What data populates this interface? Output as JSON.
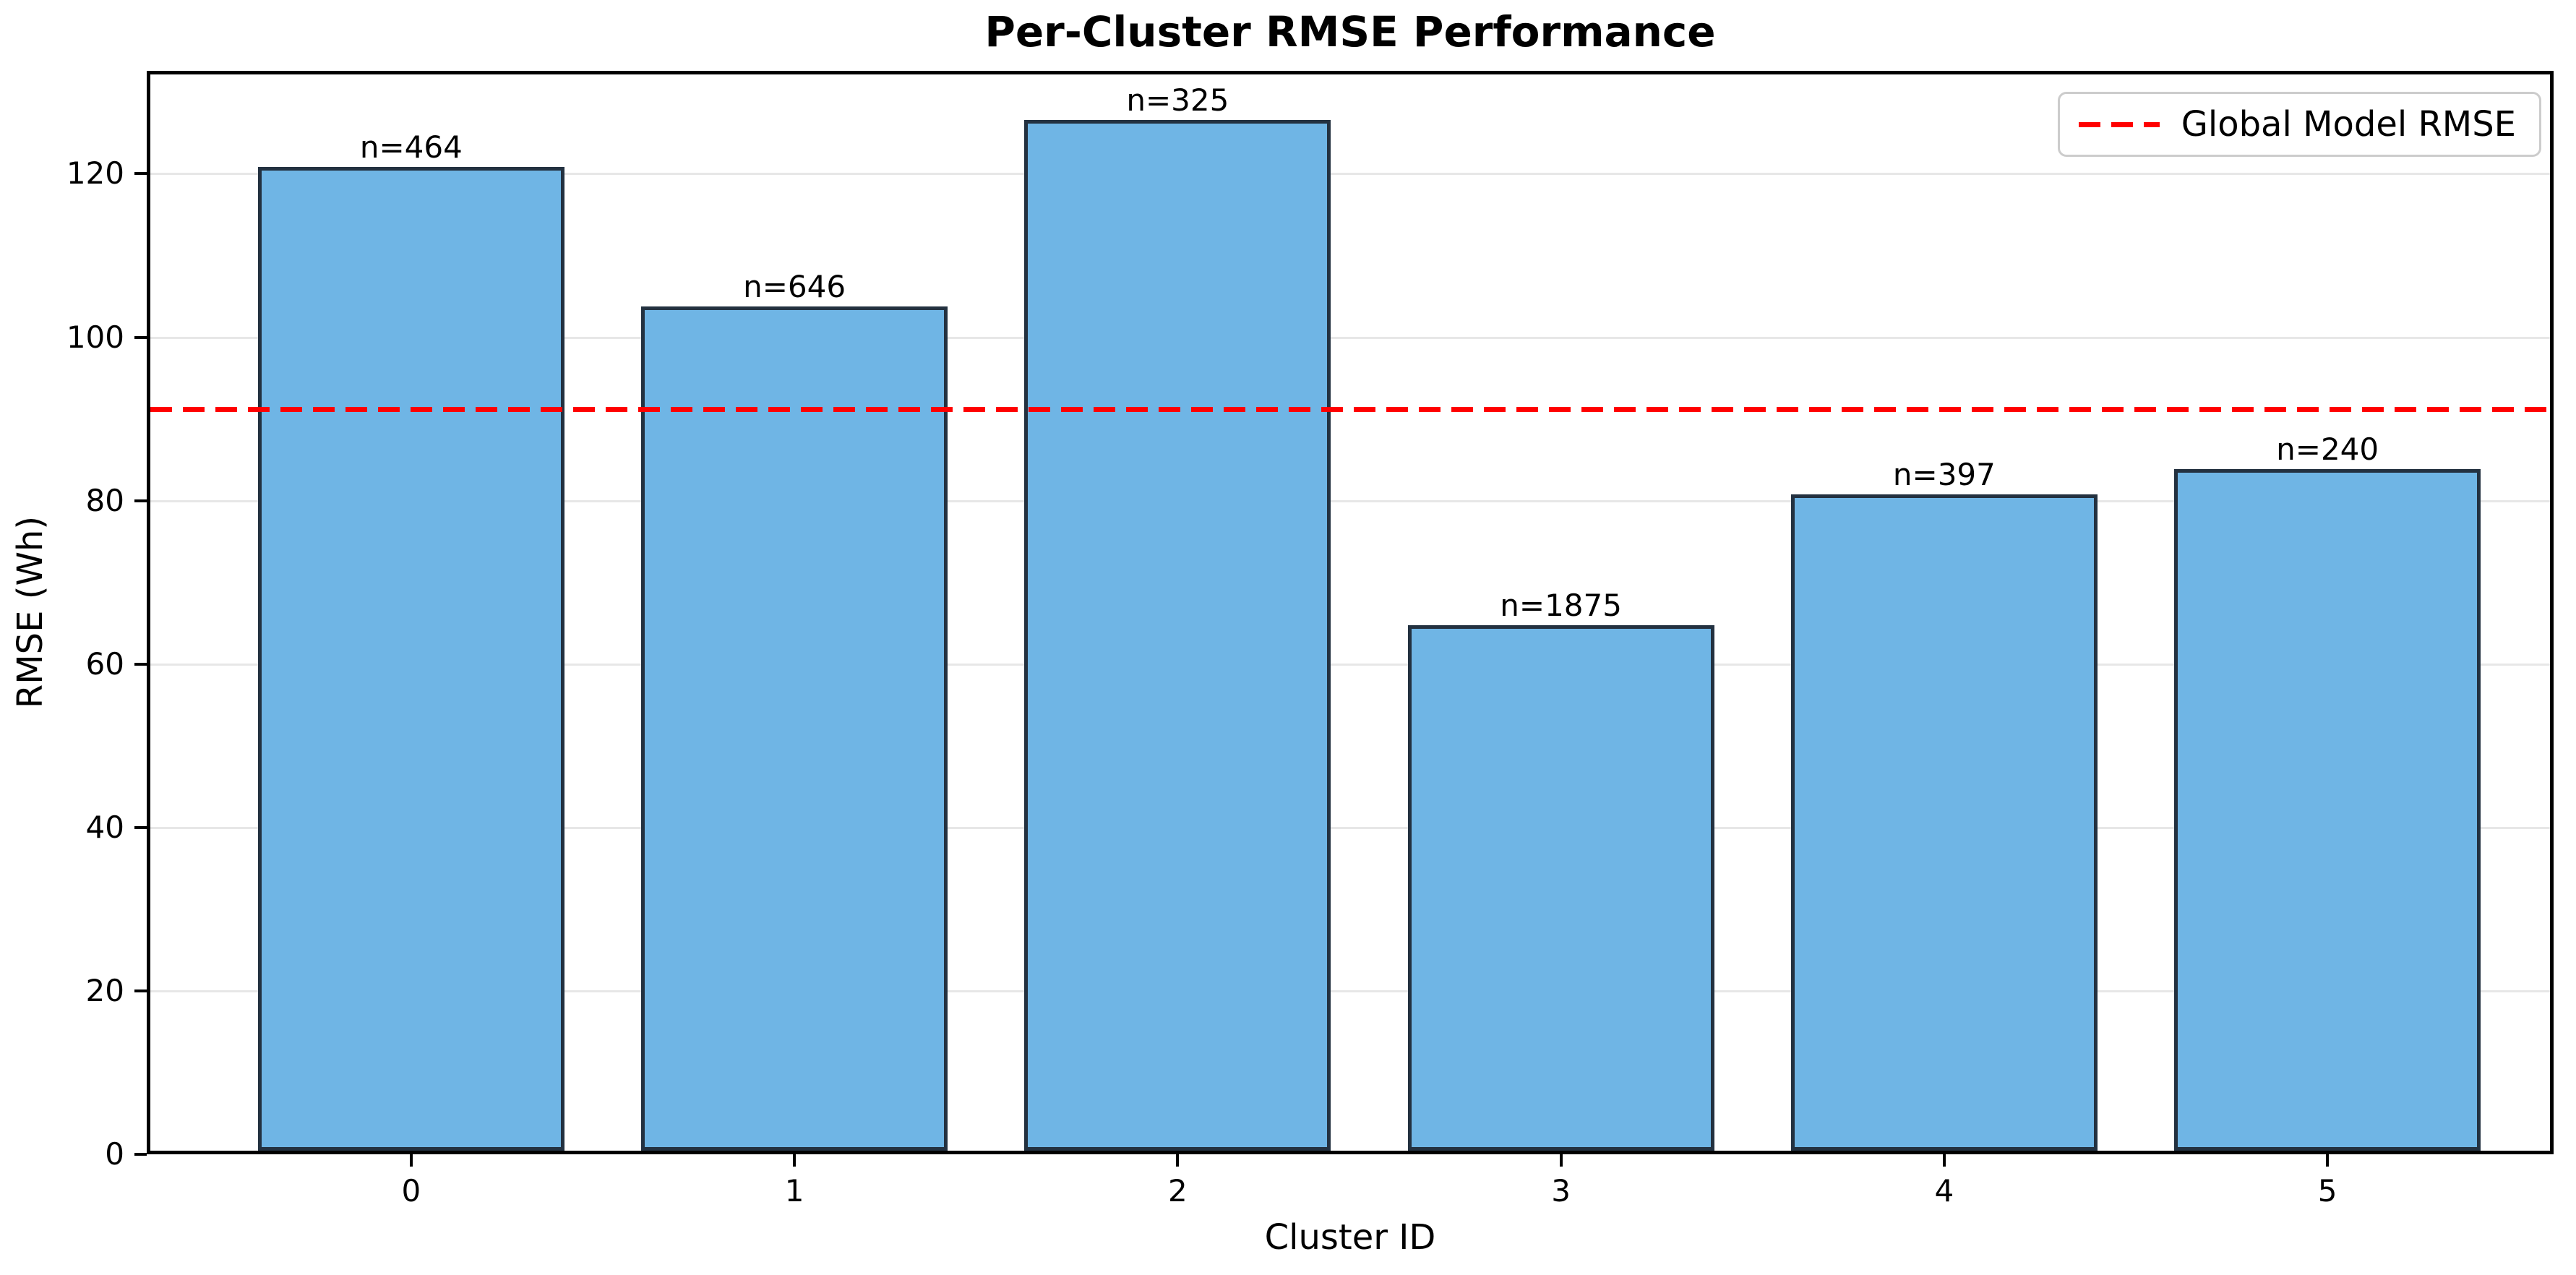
{
  "chart_data": {
    "type": "bar",
    "title": "Per-Cluster RMSE Performance",
    "xlabel": "Cluster ID",
    "ylabel": "RMSE (Wh)",
    "categories": [
      "0",
      "1",
      "2",
      "3",
      "4",
      "5"
    ],
    "values": [
      120.4,
      103.3,
      126.1,
      64.3,
      80.3,
      83.4
    ],
    "bar_labels": [
      "n=464",
      "n=646",
      "n=325",
      "n=1875",
      "n=397",
      "n=240"
    ],
    "sample_counts": [
      464,
      646,
      325,
      1875,
      397,
      240
    ],
    "reference_line": {
      "label": "Global Model RMSE",
      "value": 91.2,
      "color": "#ff0000",
      "style": "dashed"
    },
    "ylim": [
      0,
      132.6
    ],
    "xlim": [
      -0.69,
      5.59
    ],
    "yticks": [
      0,
      20,
      40,
      60,
      80,
      100,
      120
    ],
    "bar_width": 0.8,
    "bar_color": "#6fb5e5",
    "bar_edge_color": "#233140",
    "grid": "horizontal",
    "gridline_color": "#e7e7e7",
    "legend_position": "upper right"
  }
}
